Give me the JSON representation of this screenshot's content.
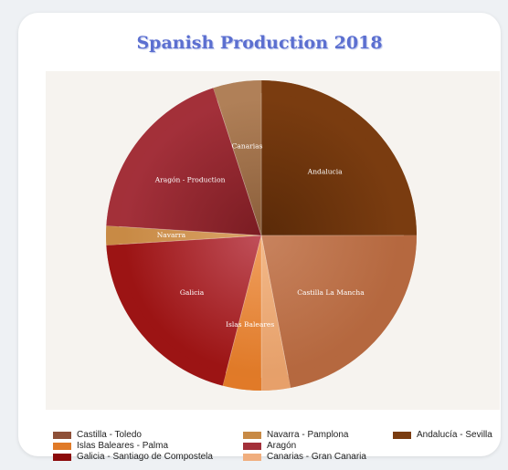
{
  "chart_data": {
    "type": "pie",
    "title": "Spanish Production 2018",
    "slices": [
      {
        "label": "Andalucia",
        "value": 25.0,
        "color": "#7a3c10",
        "dark": "#5a2a08"
      },
      {
        "label": "Castilla La Mancha",
        "value": 22.0,
        "color": "#b5683f",
        "dark": "#c8835e"
      },
      {
        "label": "",
        "value": 3.0,
        "color": "#e6a06a",
        "dark": "#f3b989"
      },
      {
        "label": "Islas Baleares",
        "value": 4.0,
        "color": "#e07a28",
        "dark": "#f0a060"
      },
      {
        "label": "Galicia",
        "value": 20.0,
        "color": "#9c1414",
        "dark": "#c0505a"
      },
      {
        "label": "Navarra",
        "value": 2.0,
        "color": "#c88a45",
        "dark": "#dba468"
      },
      {
        "label": "Aragón - Production",
        "value": 19.0,
        "color": "#a3303a",
        "dark": "#7a1c22"
      },
      {
        "label": "Canarias",
        "value": 5.0,
        "color": "#b08058",
        "dark": "#8a5e3a"
      }
    ],
    "legend": [
      {
        "label": "Castilla - Toledo",
        "color": "#8e5038"
      },
      {
        "label": "Navarra - Pamplona",
        "color": "#c88a45"
      },
      {
        "label": "Andalucía - Sevilla",
        "color": "#7a3c10"
      },
      {
        "label": "Islas Baleares - Palma",
        "color": "#e07a28"
      },
      {
        "label": "Aragón",
        "color": "#a3303a"
      },
      {
        "label": "Galicia - Santiago de Compostela",
        "color": "#8b0a0a"
      },
      {
        "label": "Canarias - Gran Canaria",
        "color": "#f0ae7e"
      }
    ]
  }
}
